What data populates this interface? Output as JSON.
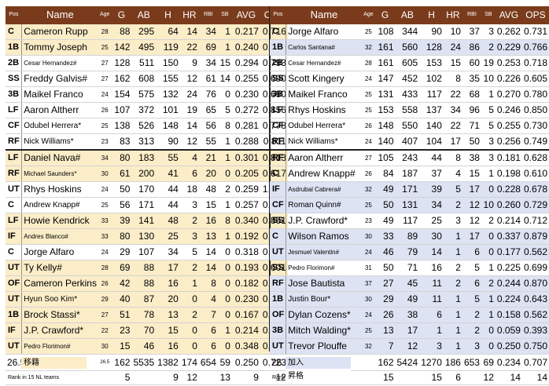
{
  "headers": {
    "pos": "Pos",
    "name": "Name",
    "age": "Age",
    "g": "G",
    "ab": "AB",
    "h": "H",
    "hr": "HR",
    "rbi": "RBI",
    "sb": "SB",
    "avg": "AVG",
    "ops": "OPS"
  },
  "left": {
    "rows": [
      {
        "pos": "C",
        "name": "Cameron Rupp",
        "age": "28",
        "g": "88",
        "ab": "295",
        "h": "64",
        "hr": "14",
        "rbi": "34",
        "sb": "1",
        "avg": "0.217",
        "ops": "0.716"
      },
      {
        "pos": "1B",
        "name": "Tommy Joseph",
        "age": "25",
        "g": "142",
        "ab": "495",
        "h": "119",
        "hr": "22",
        "rbi": "69",
        "sb": "1",
        "avg": "0.240",
        "ops": "0.721"
      },
      {
        "pos": "2B",
        "name": "Cesar Hernandez#",
        "age": "27",
        "g": "128",
        "ab": "511",
        "h": "150",
        "hr": "9",
        "rbi": "34",
        "sb": "15",
        "avg": "0.294",
        "ops": "0.793"
      },
      {
        "pos": "SS",
        "name": "Freddy Galvis#",
        "age": "27",
        "g": "162",
        "ab": "608",
        "h": "155",
        "hr": "12",
        "rbi": "61",
        "sb": "14",
        "avg": "0.255",
        "ops": "0.690"
      },
      {
        "pos": "3B",
        "name": "Maikel Franco",
        "age": "24",
        "g": "154",
        "ab": "575",
        "h": "132",
        "hr": "24",
        "rbi": "76",
        "sb": "0",
        "avg": "0.230",
        "ops": "0.690"
      },
      {
        "pos": "LF",
        "name": "Aaron Altherr",
        "age": "26",
        "g": "107",
        "ab": "372",
        "h": "101",
        "hr": "19",
        "rbi": "65",
        "sb": "5",
        "avg": "0.272",
        "ops": "0.856"
      },
      {
        "pos": "CF",
        "name": "Odubel Herrera*",
        "age": "25",
        "g": "138",
        "ab": "526",
        "h": "148",
        "hr": "14",
        "rbi": "56",
        "sb": "8",
        "avg": "0.281",
        "ops": "0.778"
      },
      {
        "pos": "RF",
        "name": "Nick Williams*",
        "age": "23",
        "g": "83",
        "ab": "313",
        "h": "90",
        "hr": "12",
        "rbi": "55",
        "sb": "1",
        "avg": "0.288",
        "ops": "0.811"
      },
      {
        "pos": "LF",
        "name": "Daniel Nava#",
        "age": "34",
        "g": "80",
        "ab": "183",
        "h": "55",
        "hr": "4",
        "rbi": "21",
        "sb": "1",
        "avg": "0.301",
        "ops": "0.813"
      },
      {
        "pos": "RF",
        "name": "Michael Saunders*",
        "age": "30",
        "g": "61",
        "ab": "200",
        "h": "41",
        "hr": "6",
        "rbi": "20",
        "sb": "0",
        "avg": "0.205",
        "ops": "0.617"
      },
      {
        "pos": "UT",
        "name": "Rhys Hoskins",
        "age": "24",
        "g": "50",
        "ab": "170",
        "h": "44",
        "hr": "18",
        "rbi": "48",
        "sb": "2",
        "avg": "0.259",
        "ops": "1.014"
      },
      {
        "pos": "C",
        "name": "Andrew Knapp#",
        "age": "25",
        "g": "56",
        "ab": "171",
        "h": "44",
        "hr": "3",
        "rbi": "15",
        "sb": "1",
        "avg": "0.257",
        "ops": "0.736"
      },
      {
        "pos": "LF",
        "name": "Howie Kendrick",
        "age": "33",
        "g": "39",
        "ab": "141",
        "h": "48",
        "hr": "2",
        "rbi": "16",
        "sb": "8",
        "avg": "0.340",
        "ops": "0.851"
      },
      {
        "pos": "IF",
        "name": "Andres Blanco#",
        "age": "33",
        "g": "80",
        "ab": "130",
        "h": "25",
        "hr": "3",
        "rbi": "13",
        "sb": "1",
        "avg": "0.192",
        "ops": "0.549"
      },
      {
        "pos": "C",
        "name": "Jorge Alfaro",
        "age": "24",
        "g": "29",
        "ab": "107",
        "h": "34",
        "hr": "5",
        "rbi": "14",
        "sb": "0",
        "avg": "0.318",
        "ops": "0.874"
      },
      {
        "pos": "UT",
        "name": "Ty Kelly#",
        "age": "28",
        "g": "69",
        "ab": "88",
        "h": "17",
        "hr": "2",
        "rbi": "14",
        "sb": "0",
        "avg": "0.193",
        "ops": "0.601"
      },
      {
        "pos": "OF",
        "name": "Cameron Perkins",
        "age": "26",
        "g": "42",
        "ab": "88",
        "h": "16",
        "hr": "1",
        "rbi": "8",
        "sb": "0",
        "avg": "0.182",
        "ops": "0.510"
      },
      {
        "pos": "UT",
        "name": "Hyun Soo Kim*",
        "age": "29",
        "g": "40",
        "ab": "87",
        "h": "20",
        "hr": "0",
        "rbi": "4",
        "sb": "0",
        "avg": "0.230",
        "ops": "0.608"
      },
      {
        "pos": "1B",
        "name": "Brock Stassi*",
        "age": "27",
        "g": "51",
        "ab": "78",
        "h": "13",
        "hr": "2",
        "rbi": "7",
        "sb": "0",
        "avg": "0.167",
        "ops": "0.573"
      },
      {
        "pos": "IF",
        "name": "J.P. Crawford*",
        "age": "22",
        "g": "23",
        "ab": "70",
        "h": "15",
        "hr": "0",
        "rbi": "6",
        "sb": "1",
        "avg": "0.214",
        "ops": "0.656"
      },
      {
        "pos": "UT",
        "name": "Pedro Florimon#",
        "age": "30",
        "g": "15",
        "ab": "46",
        "h": "16",
        "hr": "0",
        "rbi": "6",
        "sb": "0",
        "avg": "0.348",
        "ops": "0.866"
      }
    ],
    "totals": {
      "pos": "26.5",
      "age": "26.5",
      "g": "162",
      "ab": "5535",
      "h": "1382",
      "hr": "174",
      "rbi": "654",
      "sb": "59",
      "avg": "0.250",
      "ops": "0.723"
    },
    "rank": {
      "label": "Rank in 15 NL teams",
      "g": "5",
      "h": "9",
      "hr": "12",
      "sb": "13",
      "avg": "9",
      "ops": "12"
    }
  },
  "right": {
    "rows": [
      {
        "pos": "C",
        "name": "Jorge Alfaro",
        "age": "25",
        "g": "108",
        "ab": "344",
        "h": "90",
        "hr": "10",
        "rbi": "37",
        "sb": "3",
        "avg": "0.262",
        "ops": "0.731"
      },
      {
        "pos": "1B",
        "name": "Carlos Santana#",
        "age": "32",
        "g": "161",
        "ab": "560",
        "h": "128",
        "hr": "24",
        "rbi": "86",
        "sb": "2",
        "avg": "0.229",
        "ops": "0.766"
      },
      {
        "pos": "2B",
        "name": "Cesar Hernandez#",
        "age": "28",
        "g": "161",
        "ab": "605",
        "h": "153",
        "hr": "15",
        "rbi": "60",
        "sb": "19",
        "avg": "0.253",
        "ops": "0.718"
      },
      {
        "pos": "SS",
        "name": "Scott Kingery",
        "age": "24",
        "g": "147",
        "ab": "452",
        "h": "102",
        "hr": "8",
        "rbi": "35",
        "sb": "10",
        "avg": "0.226",
        "ops": "0.605"
      },
      {
        "pos": "3B",
        "name": "Maikel Franco",
        "age": "25",
        "g": "131",
        "ab": "433",
        "h": "117",
        "hr": "22",
        "rbi": "68",
        "sb": "1",
        "avg": "0.270",
        "ops": "0.780"
      },
      {
        "pos": "LF",
        "name": "Rhys Hoskins",
        "age": "25",
        "g": "153",
        "ab": "558",
        "h": "137",
        "hr": "34",
        "rbi": "96",
        "sb": "5",
        "avg": "0.246",
        "ops": "0.850"
      },
      {
        "pos": "CF",
        "name": "Odubel Herrera*",
        "age": "26",
        "g": "148",
        "ab": "550",
        "h": "140",
        "hr": "22",
        "rbi": "71",
        "sb": "5",
        "avg": "0.255",
        "ops": "0.730"
      },
      {
        "pos": "RF",
        "name": "Nick Williams*",
        "age": "24",
        "g": "140",
        "ab": "407",
        "h": "104",
        "hr": "17",
        "rbi": "50",
        "sb": "3",
        "avg": "0.256",
        "ops": "0.749"
      },
      {
        "pos": "RF",
        "name": "Aaron Altherr",
        "age": "27",
        "g": "105",
        "ab": "243",
        "h": "44",
        "hr": "8",
        "rbi": "38",
        "sb": "3",
        "avg": "0.181",
        "ops": "0.628"
      },
      {
        "pos": "C",
        "name": "Andrew Knapp#",
        "age": "26",
        "g": "84",
        "ab": "187",
        "h": "37",
        "hr": "4",
        "rbi": "15",
        "sb": "1",
        "avg": "0.198",
        "ops": "0.610"
      },
      {
        "pos": "IF",
        "name": "Asdrubal Cabrera#",
        "age": "32",
        "g": "49",
        "ab": "171",
        "h": "39",
        "hr": "5",
        "rbi": "17",
        "sb": "0",
        "avg": "0.228",
        "ops": "0.678"
      },
      {
        "pos": "CF",
        "name": "Roman Quinn#",
        "age": "25",
        "g": "50",
        "ab": "131",
        "h": "34",
        "hr": "2",
        "rbi": "12",
        "sb": "10",
        "avg": "0.260",
        "ops": "0.729"
      },
      {
        "pos": "SS",
        "name": "J.P. Crawford*",
        "age": "23",
        "g": "49",
        "ab": "117",
        "h": "25",
        "hr": "3",
        "rbi": "12",
        "sb": "2",
        "avg": "0.214",
        "ops": "0.712"
      },
      {
        "pos": "C",
        "name": "Wilson Ramos",
        "age": "30",
        "g": "33",
        "ab": "89",
        "h": "30",
        "hr": "1",
        "rbi": "17",
        "sb": "0",
        "avg": "0.337",
        "ops": "0.879"
      },
      {
        "pos": "UT",
        "name": "Jesmuel Valentin#",
        "age": "24",
        "g": "46",
        "ab": "79",
        "h": "14",
        "hr": "1",
        "rbi": "6",
        "sb": "0",
        "avg": "0.177",
        "ops": "0.562"
      },
      {
        "pos": "SS",
        "name": "Pedro Florimon#",
        "age": "31",
        "g": "50",
        "ab": "71",
        "h": "16",
        "hr": "2",
        "rbi": "5",
        "sb": "1",
        "avg": "0.225",
        "ops": "0.699"
      },
      {
        "pos": "RF",
        "name": "Jose Bautista",
        "age": "37",
        "g": "27",
        "ab": "45",
        "h": "11",
        "hr": "2",
        "rbi": "6",
        "sb": "2",
        "avg": "0.244",
        "ops": "0.870"
      },
      {
        "pos": "1B",
        "name": "Justin Bour*",
        "age": "30",
        "g": "29",
        "ab": "49",
        "h": "11",
        "hr": "1",
        "rbi": "5",
        "sb": "1",
        "avg": "0.224",
        "ops": "0.643"
      },
      {
        "pos": "OF",
        "name": "Dylan Cozens*",
        "age": "24",
        "g": "26",
        "ab": "38",
        "h": "6",
        "hr": "1",
        "rbi": "2",
        "sb": "1",
        "avg": "0.158",
        "ops": "0.562"
      },
      {
        "pos": "3B",
        "name": "Mitch Walding*",
        "age": "25",
        "g": "13",
        "ab": "17",
        "h": "1",
        "hr": "1",
        "rbi": "2",
        "sb": "0",
        "avg": "0.059",
        "ops": "0.393"
      },
      {
        "pos": "UT",
        "name": "Trevor Plouffe",
        "age": "32",
        "g": "7",
        "ab": "12",
        "h": "3",
        "hr": "1",
        "rbi": "3",
        "sb": "0",
        "avg": "0.250",
        "ops": "0.750"
      }
    ],
    "totals": {
      "pos": "26.8",
      "age": "",
      "g": "162",
      "ab": "5424",
      "h": "1270",
      "hr": "186",
      "rbi": "653",
      "sb": "69",
      "avg": "0.234",
      "ops": "0.707"
    },
    "rank": {
      "label": "Rank in 15 NL teams",
      "g": "15",
      "h": "15",
      "hr": "6",
      "sb": "12",
      "avg": "14",
      "ops": "14"
    }
  },
  "legend": {
    "moved": "移籍",
    "added": "加入",
    "promoted": "昇格"
  },
  "colors": {
    "header_bg": "#7a3b1c",
    "moved_bg": "#fbedc8",
    "added_bg": "#dde3f3"
  }
}
